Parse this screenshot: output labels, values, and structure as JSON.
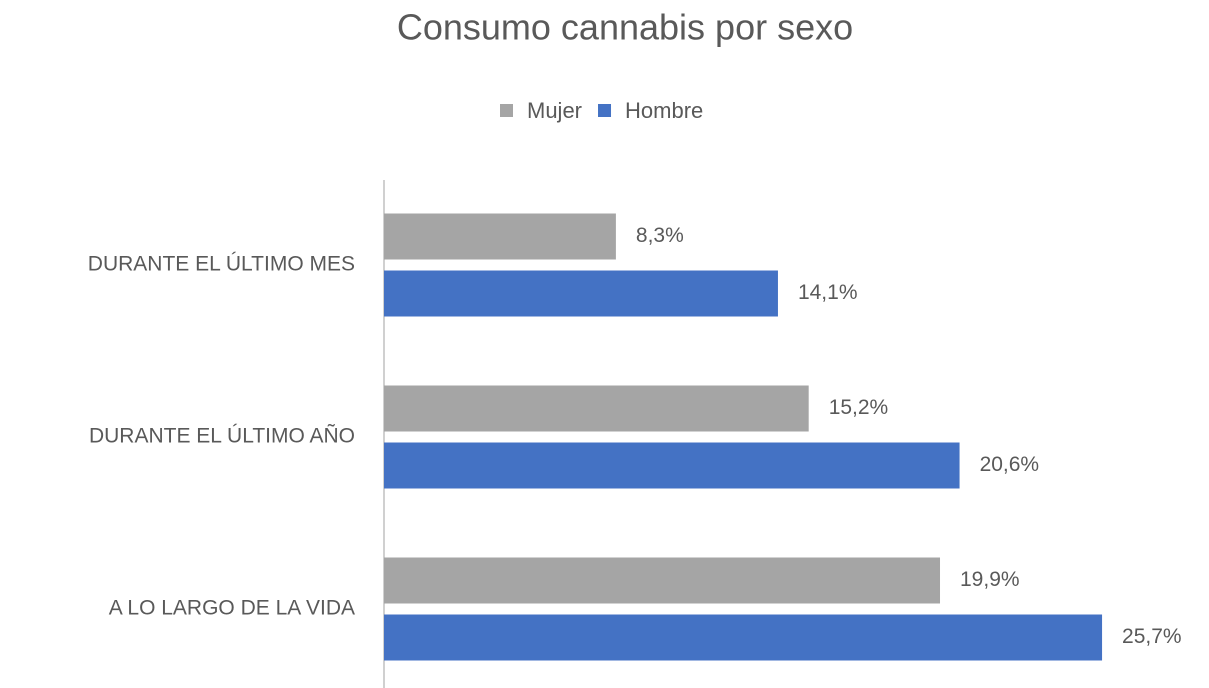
{
  "chart_data": {
    "type": "bar",
    "orientation": "horizontal",
    "title": "Consumo cannabis por sexo",
    "categories": [
      "DURANTE EL ÚLTIMO MES",
      "DURANTE EL ÚLTIMO AÑO",
      "A LO LARGO DE LA VIDA"
    ],
    "series": [
      {
        "name": "Mujer",
        "color": "#a5a5a5",
        "values": [
          8.3,
          15.2,
          19.9
        ],
        "value_labels": [
          "8,3%",
          "15,2%",
          "19,9%"
        ]
      },
      {
        "name": "Hombre",
        "color": "#4472c4",
        "values": [
          14.1,
          20.6,
          25.7
        ],
        "value_labels": [
          "14,1%",
          "20,6%",
          "25,7%"
        ]
      }
    ],
    "xlim": [
      0,
      29
    ],
    "legend": "top"
  }
}
